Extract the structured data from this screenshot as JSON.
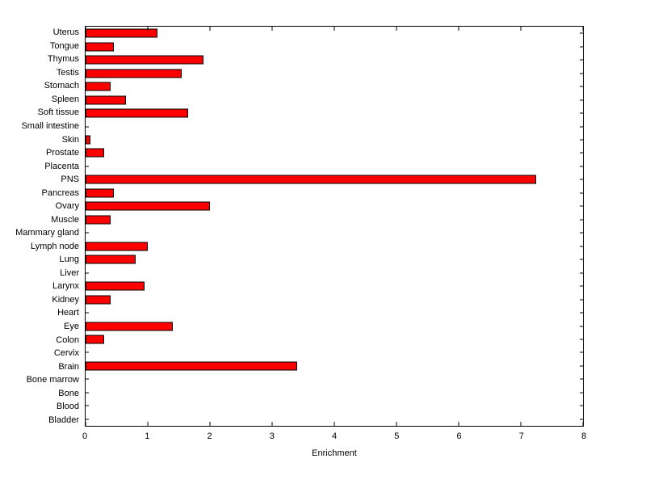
{
  "chart_data": {
    "type": "bar",
    "orientation": "horizontal",
    "title": "",
    "xlabel": "Enrichment",
    "ylabel": "",
    "xlim": [
      0,
      8
    ],
    "xticks": [
      0,
      1,
      2,
      3,
      4,
      5,
      6,
      7,
      8
    ],
    "grid": false,
    "legend_position": "none",
    "bar_color": "#ff0000",
    "bar_edge_color": "#000000",
    "category_order": "top-to-bottom",
    "categories": [
      "Uterus",
      "Tongue",
      "Thymus",
      "Testis",
      "Stomach",
      "Spleen",
      "Soft tissue",
      "Small intestine",
      "Skin",
      "Prostate",
      "Placenta",
      "PNS",
      "Pancreas",
      "Ovary",
      "Muscle",
      "Mammary gland",
      "Lymph node",
      "Lung",
      "Liver",
      "Larynx",
      "Kidney",
      "Heart",
      "Eye",
      "Colon",
      "Cervix",
      "Brain",
      "Bone marrow",
      "Bone",
      "Blood",
      "Bladder"
    ],
    "values": [
      1.15,
      0.45,
      1.9,
      1.55,
      0.4,
      0.65,
      1.65,
      0,
      0.08,
      0.3,
      0,
      7.25,
      0.45,
      2.0,
      0.4,
      0,
      1.0,
      0.8,
      0,
      0.95,
      0.4,
      0,
      1.4,
      0.3,
      0,
      3.4,
      0,
      0,
      0,
      0
    ]
  }
}
